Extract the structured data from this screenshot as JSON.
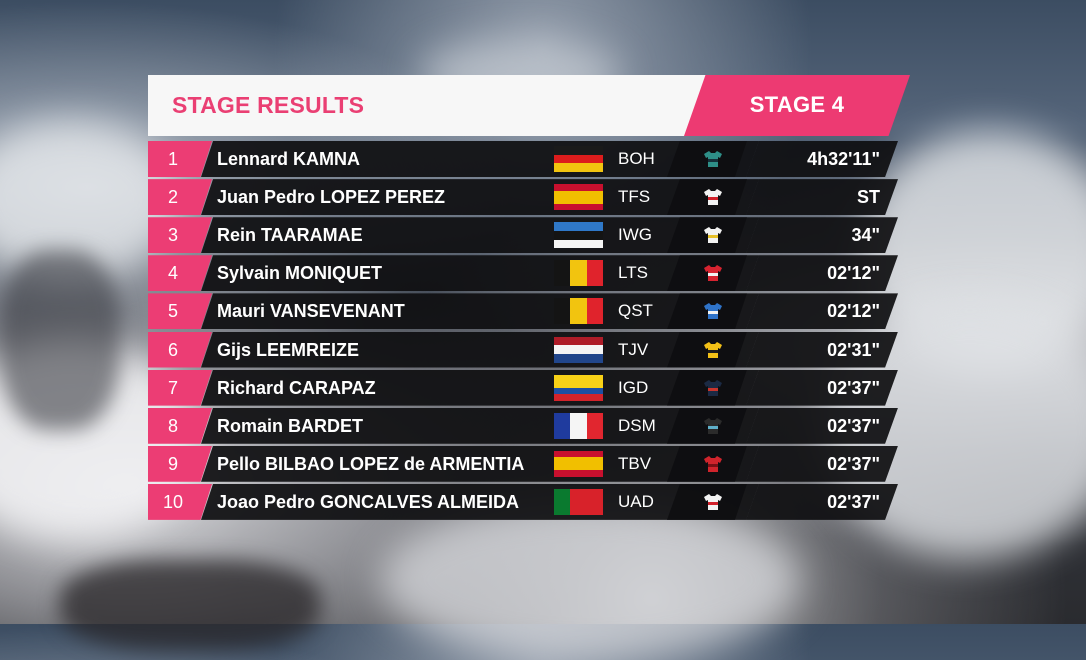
{
  "header": {
    "title": "STAGE RESULTS",
    "stage": "STAGE 4"
  },
  "colors": {
    "accent": "#ec3d74",
    "bar": "#0e0e10",
    "header_bg": "#f7f7f7"
  },
  "results": [
    {
      "pos": "1",
      "rider": "Lennard KAMNA",
      "flag": "germany",
      "team": "BOH",
      "jersey_colors": [
        "#2e8f88",
        "#15303a"
      ],
      "time": "4h32'11\""
    },
    {
      "pos": "2",
      "rider": "Juan Pedro LOPEZ PEREZ",
      "flag": "spain",
      "team": "TFS",
      "jersey_colors": [
        "#f2f2f2",
        "#d1202a"
      ],
      "time": "ST"
    },
    {
      "pos": "3",
      "rider": "Rein TAARAMAE",
      "flag": "estonia",
      "team": "IWG",
      "jersey_colors": [
        "#f2f2f2",
        "#e7c12a"
      ],
      "time": "34\""
    },
    {
      "pos": "4",
      "rider": "Sylvain MONIQUET",
      "flag": "belgium",
      "team": "LTS",
      "jersey_colors": [
        "#d62330",
        "#f2f2f2"
      ],
      "time": "02'12\""
    },
    {
      "pos": "5",
      "rider": "Mauri VANSEVENANT",
      "flag": "belgium",
      "team": "QST",
      "jersey_colors": [
        "#2f73c9",
        "#f2f2f2"
      ],
      "time": "02'12\""
    },
    {
      "pos": "6",
      "rider": "Gijs LEEMREIZE",
      "flag": "netherlands",
      "team": "TJV",
      "jersey_colors": [
        "#f2c017",
        "#1b1b1b"
      ],
      "time": "02'31\""
    },
    {
      "pos": "7",
      "rider": "Richard CARAPAZ",
      "flag": "ecuador",
      "team": "IGD",
      "jersey_colors": [
        "#1b2a44",
        "#c8352d"
      ],
      "time": "02'37\""
    },
    {
      "pos": "8",
      "rider": "Romain BARDET",
      "flag": "france",
      "team": "DSM",
      "jersey_colors": [
        "#2b2b2b",
        "#5fb0c9"
      ],
      "time": "02'37\""
    },
    {
      "pos": "9",
      "rider": "Pello BILBAO LOPEZ de ARMENTIA",
      "flag": "spain",
      "team": "TBV",
      "jersey_colors": [
        "#d0242c",
        "#7a1015"
      ],
      "time": "02'37\""
    },
    {
      "pos": "10",
      "rider": "Joao Pedro GONCALVES ALMEIDA",
      "flag": "portugal",
      "team": "UAD",
      "jersey_colors": [
        "#f2f2f2",
        "#d1202a"
      ],
      "time": "02'37\""
    }
  ]
}
